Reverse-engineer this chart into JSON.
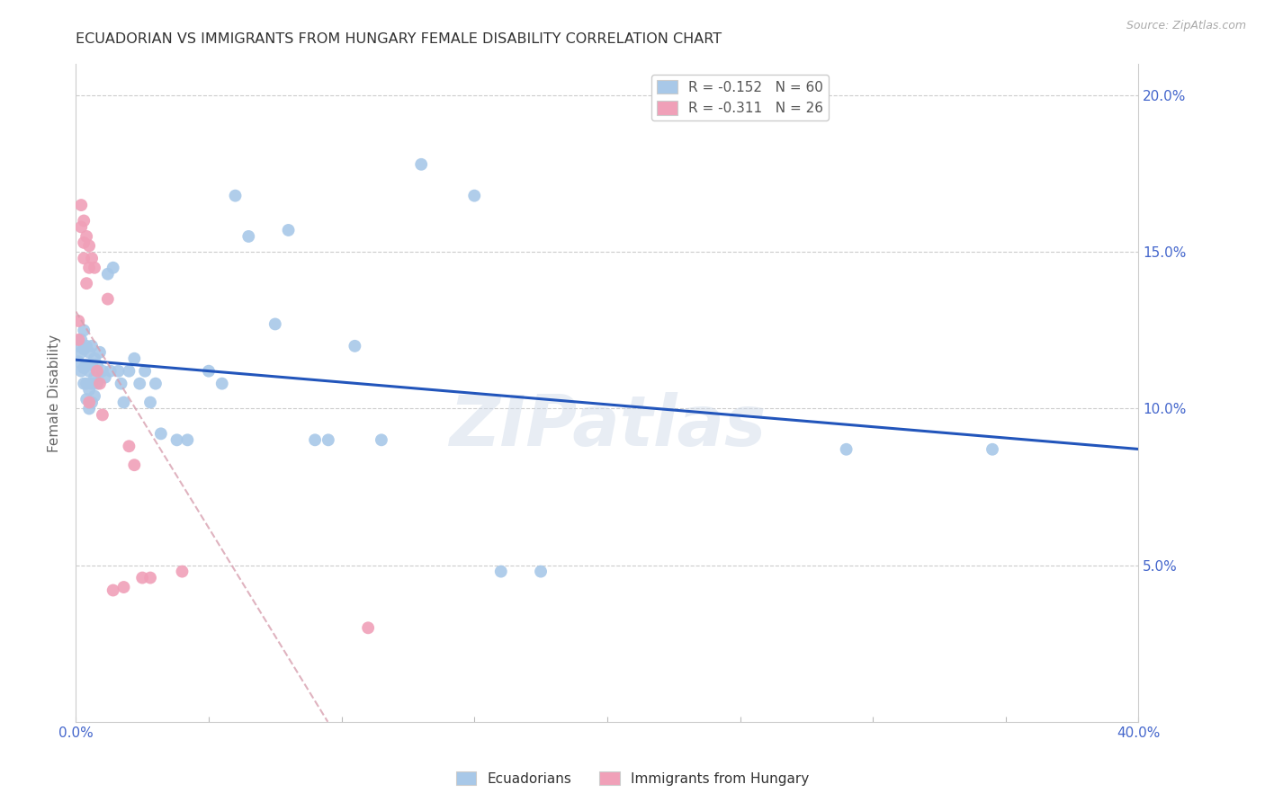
{
  "title": "ECUADORIAN VS IMMIGRANTS FROM HUNGARY FEMALE DISABILITY CORRELATION CHART",
  "source": "Source: ZipAtlas.com",
  "ylabel": "Female Disability",
  "xlim": [
    0.0,
    0.4
  ],
  "ylim": [
    0.0,
    0.21
  ],
  "ecuadorians_color": "#a8c8e8",
  "hungary_color": "#f0a0b8",
  "trendline1_color": "#2255bb",
  "trendline2_color": "#d8a0b0",
  "watermark": "ZIPatlas",
  "legend_r1": "-0.152",
  "legend_n1": "60",
  "legend_r2": "-0.311",
  "legend_n2": "26",
  "ecuadorians_x": [
    0.001,
    0.001,
    0.002,
    0.002,
    0.002,
    0.003,
    0.003,
    0.003,
    0.003,
    0.004,
    0.004,
    0.004,
    0.004,
    0.005,
    0.005,
    0.005,
    0.005,
    0.006,
    0.006,
    0.006,
    0.006,
    0.007,
    0.007,
    0.007,
    0.008,
    0.008,
    0.009,
    0.01,
    0.011,
    0.012,
    0.013,
    0.014,
    0.016,
    0.017,
    0.018,
    0.02,
    0.022,
    0.024,
    0.026,
    0.028,
    0.03,
    0.032,
    0.038,
    0.042,
    0.05,
    0.055,
    0.06,
    0.065,
    0.075,
    0.08,
    0.09,
    0.095,
    0.105,
    0.115,
    0.13,
    0.15,
    0.16,
    0.175,
    0.29,
    0.345
  ],
  "ecuadorians_y": [
    0.12,
    0.115,
    0.122,
    0.118,
    0.112,
    0.125,
    0.119,
    0.113,
    0.108,
    0.12,
    0.114,
    0.108,
    0.103,
    0.118,
    0.112,
    0.106,
    0.1,
    0.12,
    0.114,
    0.108,
    0.102,
    0.116,
    0.11,
    0.104,
    0.114,
    0.108,
    0.118,
    0.112,
    0.11,
    0.143,
    0.112,
    0.145,
    0.112,
    0.108,
    0.102,
    0.112,
    0.116,
    0.108,
    0.112,
    0.102,
    0.108,
    0.092,
    0.09,
    0.09,
    0.112,
    0.108,
    0.168,
    0.155,
    0.127,
    0.157,
    0.09,
    0.09,
    0.12,
    0.09,
    0.178,
    0.168,
    0.048,
    0.048,
    0.087,
    0.087
  ],
  "hungary_x": [
    0.001,
    0.001,
    0.002,
    0.002,
    0.003,
    0.003,
    0.003,
    0.004,
    0.004,
    0.005,
    0.005,
    0.005,
    0.006,
    0.007,
    0.008,
    0.009,
    0.01,
    0.012,
    0.014,
    0.018,
    0.02,
    0.022,
    0.025,
    0.028,
    0.04,
    0.11
  ],
  "hungary_y": [
    0.128,
    0.122,
    0.165,
    0.158,
    0.16,
    0.153,
    0.148,
    0.155,
    0.14,
    0.152,
    0.145,
    0.102,
    0.148,
    0.145,
    0.112,
    0.108,
    0.098,
    0.135,
    0.042,
    0.043,
    0.088,
    0.082,
    0.046,
    0.046,
    0.048,
    0.03
  ]
}
